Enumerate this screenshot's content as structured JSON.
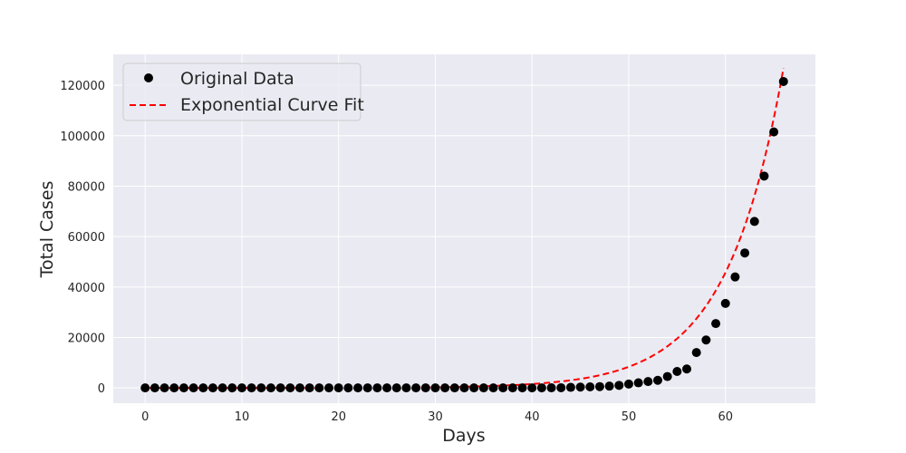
{
  "chart_data": {
    "type": "scatter",
    "title": "",
    "xlabel": "Days",
    "ylabel": "Total Cases",
    "xlim": [
      -3.3,
      69.3
    ],
    "ylim": [
      -6070,
      132270
    ],
    "xticks": [
      0,
      10,
      20,
      30,
      40,
      50,
      60
    ],
    "yticks": [
      0,
      20000,
      40000,
      60000,
      80000,
      100000,
      120000
    ],
    "grid": true,
    "legend_position": "top-left",
    "colors": {
      "background": "#eaeaf2",
      "grid": "#ffffff",
      "points": "#000000",
      "fit": "#ff0000"
    },
    "series": [
      {
        "name": "Original Data",
        "style": "markers",
        "x": [
          0,
          1,
          2,
          3,
          4,
          5,
          6,
          7,
          8,
          9,
          10,
          11,
          12,
          13,
          14,
          15,
          16,
          17,
          18,
          19,
          20,
          21,
          22,
          23,
          24,
          25,
          26,
          27,
          28,
          29,
          30,
          31,
          32,
          33,
          34,
          35,
          36,
          37,
          38,
          39,
          40,
          41,
          42,
          43,
          44,
          45,
          46,
          47,
          48,
          49,
          50,
          51,
          52,
          53,
          54,
          55,
          56,
          57,
          58,
          59,
          60,
          61,
          62,
          63,
          64,
          65,
          66
        ],
        "y": [
          0,
          0,
          0,
          0,
          0,
          0,
          0,
          0,
          0,
          0,
          0,
          0,
          0,
          0,
          0,
          0,
          0,
          0,
          0,
          0,
          0,
          0,
          0,
          0,
          0,
          0,
          0,
          0,
          0,
          0,
          0,
          0,
          0,
          0,
          0,
          0,
          0,
          0,
          0,
          0,
          0,
          10,
          20,
          50,
          200,
          300,
          400,
          500,
          700,
          1000,
          1500,
          2000,
          2500,
          3000,
          4500,
          6500,
          7500,
          14000,
          19000,
          25500,
          33500,
          44000,
          53500,
          66000,
          84000,
          101500,
          121500
        ]
      },
      {
        "name": "Exponential Curve Fit",
        "style": "dashed-line",
        "model": "y = a * exp(b * x)",
        "params": {
          "a": 1.7,
          "b": 0.17
        },
        "x_range": [
          0,
          66
        ]
      }
    ]
  }
}
